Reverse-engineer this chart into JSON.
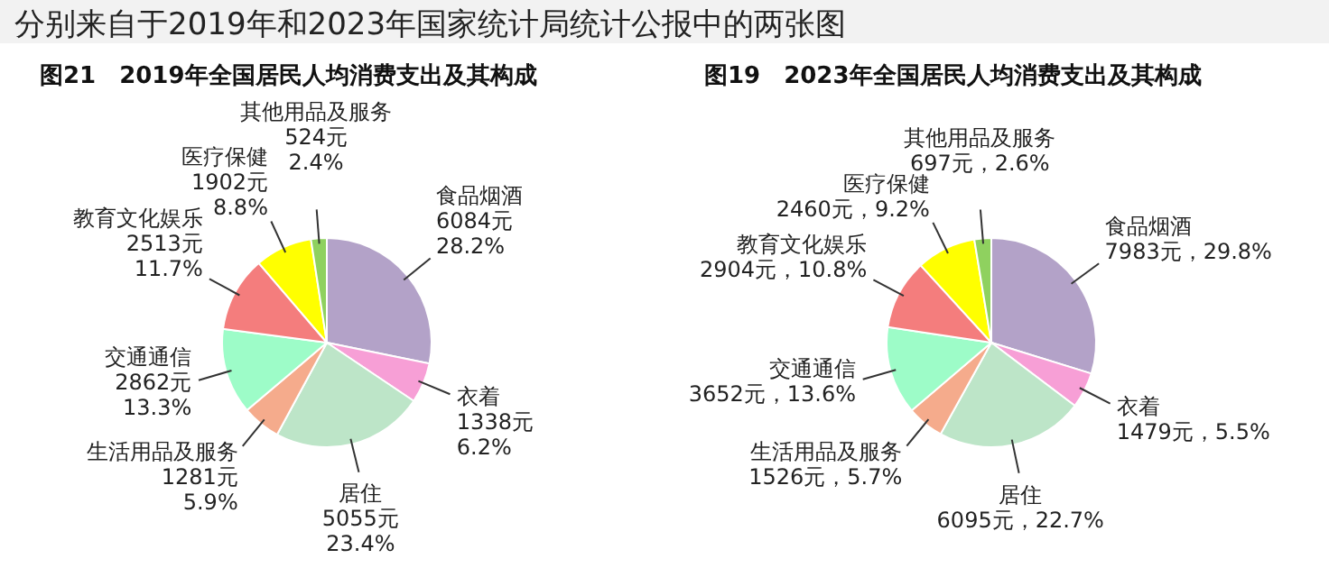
{
  "chart_data": [
    {
      "type": "pie",
      "title": "图21　2019年全国居民人均消费支出及其构成",
      "annotations": [
        "分别来自于2019年和2023年国家统计局统计公报中的两张图"
      ],
      "categories": [
        "食品烟酒",
        "衣着",
        "居住",
        "生活用品及服务",
        "交通通信",
        "教育文化娱乐",
        "医疗保健",
        "其他用品及服务"
      ],
      "values": [
        6084,
        1338,
        5055,
        1281,
        2862,
        2513,
        1902,
        524
      ],
      "value_labels": [
        "6084元\n28.2%",
        "1338元\n6.2%",
        "5055元\n23.4%",
        "1281元\n5.9%",
        "2862元\n13.3%",
        "2513元\n11.7%",
        "1902元\n8.8%",
        "524元\n2.4%"
      ],
      "colors": [
        "#b3a2c8",
        "#f79fd6",
        "#bde5c8",
        "#f5ab8c",
        "#9dfcc8",
        "#f47d7d",
        "#ffff00",
        "#8fd15f"
      ]
    },
    {
      "type": "pie",
      "title": "图19　2023年全国居民人均消费支出及其构成",
      "categories": [
        "食品烟酒",
        "衣着",
        "居住",
        "生活用品及服务",
        "交通通信",
        "教育文化娱乐",
        "医疗保健",
        "其他用品及服务"
      ],
      "values": [
        7983,
        1479,
        6095,
        1526,
        3652,
        2904,
        2460,
        697
      ],
      "value_labels": [
        "7983元，29.8%",
        "1479元，5.5%",
        "6095元，22.7%",
        "1526元，5.7%",
        "3652元，13.6%",
        "2904元，10.8%",
        "2460元，9.2%",
        "697元，2.6%"
      ],
      "colors": [
        "#b3a2c8",
        "#f79fd6",
        "#bde5c8",
        "#f5ab8c",
        "#9dfcc8",
        "#f47d7d",
        "#ffff00",
        "#8fd15f"
      ]
    }
  ]
}
